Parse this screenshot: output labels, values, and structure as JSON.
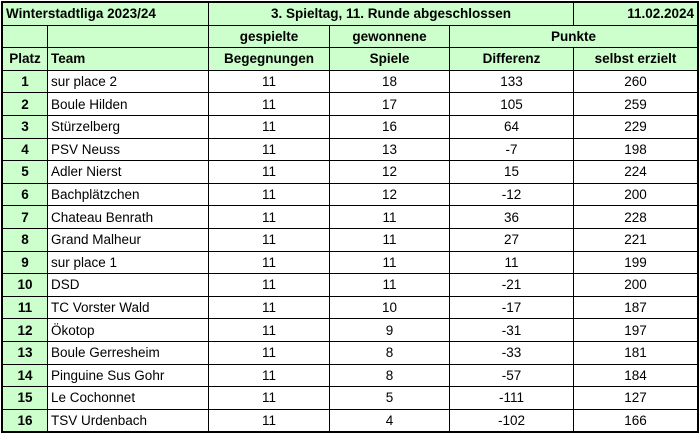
{
  "header": {
    "league": "Winterstadtliga 2023/24",
    "status": "3. Spieltag, 11. Runde abgeschlossen",
    "date": "11.02.2024"
  },
  "columns": {
    "platz": "Platz",
    "team": "Team",
    "games_top": "gespielte",
    "games_bottom": "Begegnungen",
    "won_top": "gewonnene",
    "won_bottom": "Spiele",
    "points_top": "Punkte",
    "diff": "Differenz",
    "scored": "selbst erzielt"
  },
  "rows": [
    {
      "platz": "1",
      "team": "sur place 2",
      "games": "11",
      "won": "18",
      "diff": "133",
      "scored": "260"
    },
    {
      "platz": "2",
      "team": "Boule Hilden",
      "games": "11",
      "won": "17",
      "diff": "105",
      "scored": "259"
    },
    {
      "platz": "3",
      "team": "Stürzelberg",
      "games": "11",
      "won": "16",
      "diff": "64",
      "scored": "229"
    },
    {
      "platz": "4",
      "team": "PSV Neuss",
      "games": "11",
      "won": "13",
      "diff": "-7",
      "scored": "198"
    },
    {
      "platz": "5",
      "team": "Adler Nierst",
      "games": "11",
      "won": "12",
      "diff": "15",
      "scored": "224"
    },
    {
      "platz": "6",
      "team": "Bachplätzchen",
      "games": "11",
      "won": "12",
      "diff": "-12",
      "scored": "200"
    },
    {
      "platz": "7",
      "team": "Chateau Benrath",
      "games": "11",
      "won": "11",
      "diff": "36",
      "scored": "228"
    },
    {
      "platz": "8",
      "team": "Grand Malheur",
      "games": "11",
      "won": "11",
      "diff": "27",
      "scored": "221"
    },
    {
      "platz": "9",
      "team": "sur place 1",
      "games": "11",
      "won": "11",
      "diff": "11",
      "scored": "199"
    },
    {
      "platz": "10",
      "team": "DSD",
      "games": "11",
      "won": "11",
      "diff": "-21",
      "scored": "200"
    },
    {
      "platz": "11",
      "team": "TC Vorster Wald",
      "games": "11",
      "won": "10",
      "diff": "-17",
      "scored": "187"
    },
    {
      "platz": "12",
      "team": "Ökotop",
      "games": "11",
      "won": "9",
      "diff": "-31",
      "scored": "197"
    },
    {
      "platz": "13",
      "team": "Boule Gerresheim",
      "games": "11",
      "won": "8",
      "diff": "-33",
      "scored": "181"
    },
    {
      "platz": "14",
      "team": "Pinguine Sus Gohr",
      "games": "11",
      "won": "8",
      "diff": "-57",
      "scored": "184"
    },
    {
      "platz": "15",
      "team": "Le Cochonnet",
      "games": "11",
      "won": "5",
      "diff": "-111",
      "scored": "127"
    },
    {
      "platz": "16",
      "team": "TSV Urdenbach",
      "games": "11",
      "won": "4",
      "diff": "-102",
      "scored": "166"
    }
  ],
  "colors": {
    "header_bg": "#ccffcc",
    "border": "#000000"
  }
}
